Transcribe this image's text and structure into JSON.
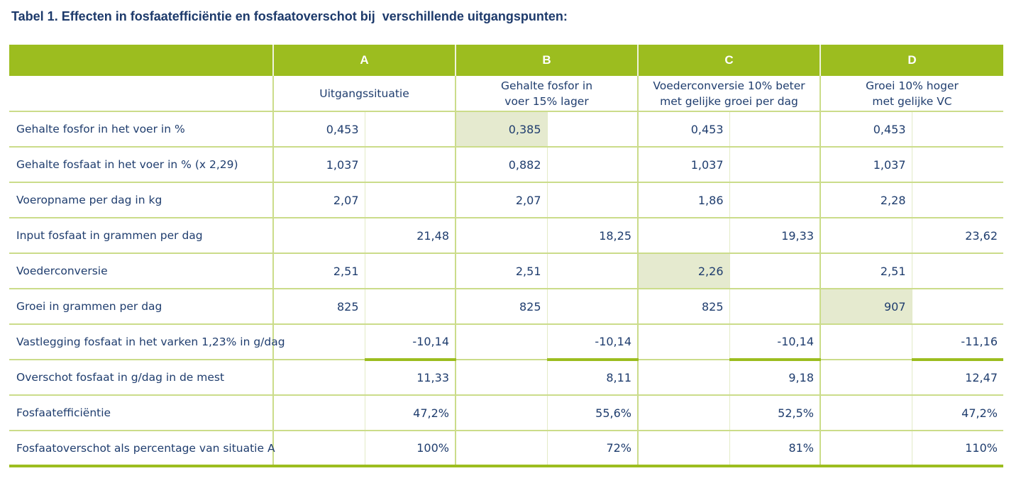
{
  "title": "Tabel 1. Effecten in fosfaatefficiëntie en fosfaatoverschot bij  verschillende uitgangspunten:",
  "columns": [
    {
      "letter": "A",
      "line1": "Uitgangssituatie",
      "line2": ""
    },
    {
      "letter": "B",
      "line1": "Gehalte fosfor in",
      "line2": "voer 15% lager"
    },
    {
      "letter": "C",
      "line1": "Voederconversie 10% beter",
      "line2": "met gelijke groei per dag"
    },
    {
      "letter": "D",
      "line1": "Groei 10% hoger",
      "line2": "met gelijke VC"
    }
  ],
  "rows": [
    {
      "label": "Gehalte fosfor in het voer in %",
      "position": "left",
      "values": [
        "0,453",
        "0,385",
        "0,453",
        "0,453"
      ],
      "highlight": [
        false,
        true,
        false,
        false
      ]
    },
    {
      "label": "Gehalte fosfaat in het voer in % (x 2,29)",
      "position": "left",
      "values": [
        "1,037",
        "0,882",
        "1,037",
        "1,037"
      ],
      "highlight": [
        false,
        false,
        false,
        false
      ]
    },
    {
      "label": "Voeropname per dag in kg",
      "position": "left",
      "values": [
        "2,07",
        "2,07",
        "1,86",
        "2,28"
      ],
      "highlight": [
        false,
        false,
        false,
        false
      ]
    },
    {
      "label": "Input fosfaat in grammen per dag",
      "position": "right",
      "values": [
        "21,48",
        "18,25",
        "19,33",
        "23,62"
      ],
      "highlight": [
        false,
        false,
        false,
        false
      ]
    },
    {
      "label": "Voederconversie",
      "position": "left",
      "values": [
        "2,51",
        "2,51",
        "2,26",
        "2,51"
      ],
      "highlight": [
        false,
        false,
        true,
        false
      ]
    },
    {
      "label": "Groei in grammen per dag",
      "position": "left",
      "values": [
        "825",
        "825",
        "825",
        "907"
      ],
      "highlight": [
        false,
        false,
        false,
        true
      ]
    },
    {
      "label": "Vastlegging fosfaat in het varken 1,23% in g/dag",
      "position": "right",
      "values": [
        "-10,14",
        "-10,14",
        "-10,14",
        "-11,16"
      ],
      "highlight": [
        false,
        false,
        false,
        false
      ],
      "underline": true
    },
    {
      "label": "Overschot fosfaat in g/dag in de mest",
      "position": "right",
      "values": [
        "11,33",
        "8,11",
        "9,18",
        "12,47"
      ],
      "highlight": [
        false,
        false,
        false,
        false
      ]
    },
    {
      "label": "Fosfaatefficiëntie",
      "position": "right",
      "values": [
        "47,2%",
        "55,6%",
        "52,5%",
        "47,2%"
      ],
      "highlight": [
        false,
        false,
        false,
        false
      ]
    },
    {
      "label": "Fosfaatoverschot als percentage van situatie A",
      "position": "right",
      "values": [
        "100%",
        "72%",
        "81%",
        "110%"
      ],
      "highlight": [
        false,
        false,
        false,
        false
      ]
    }
  ],
  "colors": {
    "header_bg": "#9cbd1f",
    "grid": "#cbdc8a",
    "highlight": "#e5eacf",
    "text": "#1f3d6e"
  }
}
